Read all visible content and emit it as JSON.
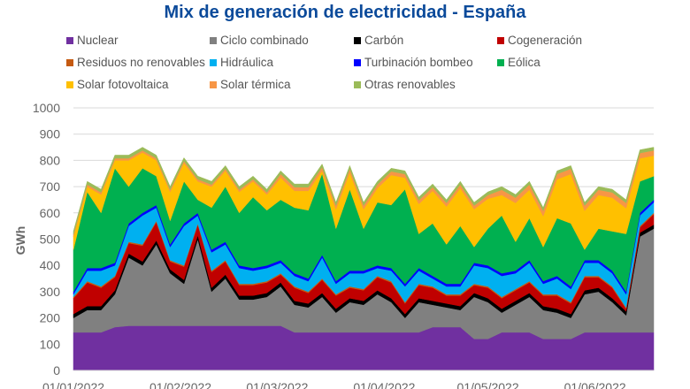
{
  "chart_data": {
    "type": "area",
    "stacked": true,
    "title": "Mix de generación de electricidad - España",
    "ylabel": "GWh",
    "xlabel": "",
    "ylim": [
      0,
      1000
    ],
    "yticks": [
      0,
      100,
      200,
      300,
      400,
      500,
      600,
      700,
      800,
      900,
      1000
    ],
    "xtick_labels": [
      "01/01/2022",
      "01/02/2022",
      "01/03/2022",
      "01/04/2022",
      "01/05/2022",
      "01/06/2022"
    ],
    "xtick_dates": [
      "2022-01-01",
      "2022-02-01",
      "2022-03-01",
      "2022-04-01",
      "2022-05-01",
      "2022-06-01"
    ],
    "grid": "horizontal",
    "legend_position": "top",
    "x": [
      "2022-01-01",
      "2022-01-05",
      "2022-01-09",
      "2022-01-13",
      "2022-01-17",
      "2022-01-21",
      "2022-01-25",
      "2022-01-29",
      "2022-02-02",
      "2022-02-06",
      "2022-02-10",
      "2022-02-14",
      "2022-02-18",
      "2022-02-22",
      "2022-02-26",
      "2022-03-02",
      "2022-03-06",
      "2022-03-10",
      "2022-03-14",
      "2022-03-18",
      "2022-03-22",
      "2022-03-26",
      "2022-03-30",
      "2022-04-03",
      "2022-04-07",
      "2022-04-11",
      "2022-04-15",
      "2022-04-19",
      "2022-04-23",
      "2022-04-27",
      "2022-05-01",
      "2022-05-05",
      "2022-05-09",
      "2022-05-13",
      "2022-05-17",
      "2022-05-21",
      "2022-05-25",
      "2022-05-29",
      "2022-06-02",
      "2022-06-06",
      "2022-06-10",
      "2022-06-14",
      "2022-06-18"
    ],
    "series": [
      {
        "name": "Nuclear",
        "color": "#7030a0",
        "values": [
          145,
          145,
          145,
          165,
          170,
          170,
          170,
          170,
          170,
          170,
          170,
          170,
          170,
          170,
          170,
          170,
          145,
          145,
          145,
          145,
          145,
          145,
          145,
          145,
          145,
          145,
          165,
          165,
          165,
          120,
          120,
          145,
          145,
          145,
          120,
          120,
          120,
          145,
          145,
          145,
          145,
          145,
          145
        ]
      },
      {
        "name": "Ciclo combinado",
        "color": "#808080",
        "values": [
          55,
          85,
          85,
          125,
          260,
          230,
          310,
          200,
          160,
          330,
          130,
          180,
          100,
          100,
          110,
          150,
          105,
          95,
          135,
          75,
          115,
          105,
          145,
          115,
          55,
          115,
          85,
          75,
          65,
          160,
          140,
          75,
          105,
          135,
          110,
          100,
          80,
          145,
          155,
          115,
          65,
          365,
          395
        ]
      },
      {
        "name": "Carbón",
        "color": "#000000",
        "values": [
          15,
          15,
          15,
          15,
          15,
          15,
          15,
          15,
          15,
          15,
          15,
          15,
          15,
          15,
          15,
          15,
          15,
          15,
          15,
          15,
          15,
          15,
          15,
          15,
          15,
          15,
          15,
          15,
          15,
          15,
          15,
          15,
          15,
          15,
          15,
          15,
          15,
          15,
          15,
          15,
          15,
          15,
          15
        ]
      },
      {
        "name": "Cogeneración",
        "color": "#c00000",
        "values": [
          60,
          90,
          70,
          50,
          40,
          60,
          70,
          30,
          50,
          40,
          60,
          50,
          40,
          40,
          40,
          30,
          50,
          40,
          50,
          50,
          40,
          40,
          50,
          60,
          40,
          50,
          50,
          30,
          40,
          30,
          40,
          40,
          40,
          40,
          40,
          50,
          40,
          50,
          40,
          40,
          10,
          20,
          40
        ]
      },
      {
        "name": "Residuos no renovables",
        "color": "#c55a11",
        "values": [
          5,
          5,
          5,
          5,
          5,
          5,
          5,
          5,
          5,
          5,
          5,
          5,
          5,
          5,
          5,
          5,
          5,
          5,
          5,
          5,
          5,
          5,
          5,
          5,
          5,
          5,
          5,
          5,
          5,
          5,
          5,
          5,
          5,
          5,
          5,
          5,
          5,
          5,
          5,
          5,
          5,
          5,
          5
        ]
      },
      {
        "name": "Hidráulica",
        "color": "#00b0f0",
        "values": [
          10,
          40,
          60,
          40,
          60,
          110,
          50,
          50,
          150,
          30,
          70,
          60,
          60,
          50,
          50,
          40,
          40,
          40,
          80,
          40,
          50,
          60,
          30,
          40,
          60,
          50,
          30,
          30,
          30,
          70,
          70,
          80,
          60,
          70,
          40,
          60,
          50,
          50,
          50,
          50,
          50,
          40,
          40
        ]
      },
      {
        "name": "Turbinación bombeo",
        "color": "#0000ff",
        "values": [
          10,
          10,
          10,
          10,
          10,
          10,
          10,
          10,
          10,
          10,
          10,
          10,
          10,
          10,
          10,
          10,
          10,
          10,
          10,
          10,
          10,
          10,
          10,
          10,
          10,
          10,
          10,
          10,
          10,
          10,
          10,
          10,
          10,
          10,
          10,
          10,
          10,
          10,
          10,
          10,
          10,
          10,
          10
        ]
      },
      {
        "name": "Eólica",
        "color": "#00b050",
        "values": [
          160,
          290,
          210,
          360,
          140,
          170,
          110,
          90,
          160,
          50,
          160,
          210,
          200,
          270,
          210,
          230,
          250,
          260,
          310,
          200,
          310,
          160,
          240,
          240,
          360,
          130,
          200,
          150,
          220,
          60,
          140,
          220,
          110,
          160,
          130,
          220,
          240,
          40,
          120,
          150,
          220,
          120,
          90
        ]
      },
      {
        "name": "Solar fotovoltaica",
        "color": "#ffc000",
        "values": [
          50,
          20,
          70,
          30,
          100,
          60,
          60,
          110,
          70,
          70,
          80,
          60,
          80,
          60,
          60,
          84,
          64,
          74,
          10,
          74,
          64,
          74,
          54,
          114,
          44,
          114,
          124,
          144,
          144,
          144,
          114,
          78,
          148,
          108,
          118,
          148,
          188,
          148,
          128,
          128,
          98,
          88,
          78
        ]
      },
      {
        "name": "Solar térmica",
        "color": "#f79646",
        "values": [
          8,
          8,
          8,
          8,
          8,
          8,
          8,
          8,
          8,
          8,
          8,
          8,
          8,
          8,
          8,
          14,
          14,
          14,
          14,
          14,
          14,
          14,
          14,
          14,
          14,
          14,
          14,
          14,
          14,
          14,
          14,
          20,
          20,
          20,
          20,
          20,
          20,
          20,
          20,
          20,
          20,
          20,
          20
        ]
      },
      {
        "name": "Otras renovables",
        "color": "#9bbb59",
        "values": [
          12,
          12,
          12,
          12,
          12,
          12,
          12,
          12,
          12,
          12,
          12,
          12,
          12,
          12,
          12,
          12,
          12,
          12,
          12,
          12,
          12,
          12,
          12,
          12,
          12,
          12,
          12,
          12,
          12,
          12,
          12,
          12,
          12,
          12,
          12,
          12,
          12,
          12,
          12,
          12,
          12,
          12,
          12
        ]
      }
    ]
  }
}
